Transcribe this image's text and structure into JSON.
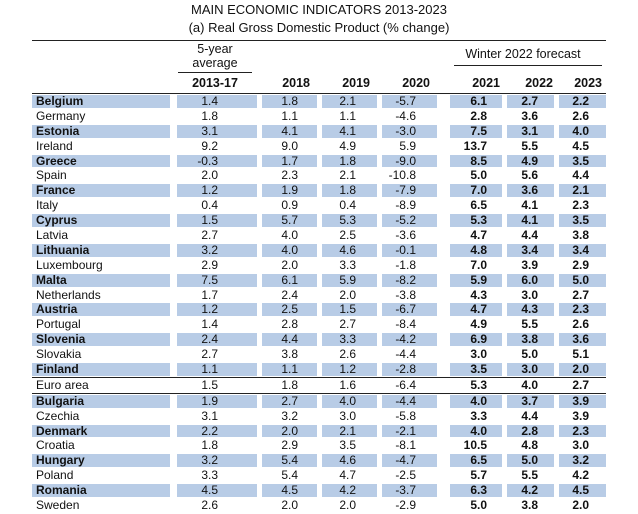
{
  "title": "MAIN ECONOMIC INDICATORS 2013-2023",
  "subtitle": "(a) Real Gross Domestic Product (% change)",
  "headers": {
    "avg_line1": "5-year",
    "avg_line2": "average",
    "forecast_group": "Winter 2022 forecast",
    "columns": [
      "2013-17",
      "2018",
      "2019",
      "2020",
      "2021",
      "2022",
      "2023"
    ]
  },
  "highlight_color": "#b8cce6",
  "rows": [
    {
      "country": "Belgium",
      "highlight": true,
      "values": [
        "1.4",
        "1.8",
        "2.1",
        "-5.7",
        "6.1",
        "2.7",
        "2.2"
      ]
    },
    {
      "country": "Germany",
      "highlight": false,
      "values": [
        "1.8",
        "1.1",
        "1.1",
        "-4.6",
        "2.8",
        "3.6",
        "2.6"
      ]
    },
    {
      "country": "Estonia",
      "highlight": true,
      "values": [
        "3.1",
        "4.1",
        "4.1",
        "-3.0",
        "7.5",
        "3.1",
        "4.0"
      ]
    },
    {
      "country": "Ireland",
      "highlight": false,
      "values": [
        "9.2",
        "9.0",
        "4.9",
        "5.9",
        "13.7",
        "5.5",
        "4.5"
      ]
    },
    {
      "country": "Greece",
      "highlight": true,
      "values": [
        "-0.3",
        "1.7",
        "1.8",
        "-9.0",
        "8.5",
        "4.9",
        "3.5"
      ]
    },
    {
      "country": "Spain",
      "highlight": false,
      "values": [
        "2.0",
        "2.3",
        "2.1",
        "-10.8",
        "5.0",
        "5.6",
        "4.4"
      ]
    },
    {
      "country": "France",
      "highlight": true,
      "values": [
        "1.2",
        "1.9",
        "1.8",
        "-7.9",
        "7.0",
        "3.6",
        "2.1"
      ]
    },
    {
      "country": "Italy",
      "highlight": false,
      "values": [
        "0.4",
        "0.9",
        "0.4",
        "-8.9",
        "6.5",
        "4.1",
        "2.3"
      ]
    },
    {
      "country": "Cyprus",
      "highlight": true,
      "values": [
        "1.5",
        "5.7",
        "5.3",
        "-5.2",
        "5.3",
        "4.1",
        "3.5"
      ]
    },
    {
      "country": "Latvia",
      "highlight": false,
      "values": [
        "2.7",
        "4.0",
        "2.5",
        "-3.6",
        "4.7",
        "4.4",
        "3.8"
      ]
    },
    {
      "country": "Lithuania",
      "highlight": true,
      "values": [
        "3.2",
        "4.0",
        "4.6",
        "-0.1",
        "4.8",
        "3.4",
        "3.4"
      ]
    },
    {
      "country": "Luxembourg",
      "highlight": false,
      "values": [
        "2.9",
        "2.0",
        "3.3",
        "-1.8",
        "7.0",
        "3.9",
        "2.9"
      ]
    },
    {
      "country": "Malta",
      "highlight": true,
      "values": [
        "7.5",
        "6.1",
        "5.9",
        "-8.2",
        "5.9",
        "6.0",
        "5.0"
      ]
    },
    {
      "country": "Netherlands",
      "highlight": false,
      "values": [
        "1.7",
        "2.4",
        "2.0",
        "-3.8",
        "4.3",
        "3.0",
        "2.7"
      ]
    },
    {
      "country": "Austria",
      "highlight": true,
      "values": [
        "1.2",
        "2.5",
        "1.5",
        "-6.7",
        "4.7",
        "4.3",
        "2.3"
      ]
    },
    {
      "country": "Portugal",
      "highlight": false,
      "values": [
        "1.4",
        "2.8",
        "2.7",
        "-8.4",
        "4.9",
        "5.5",
        "2.6"
      ]
    },
    {
      "country": "Slovenia",
      "highlight": true,
      "values": [
        "2.4",
        "4.4",
        "3.3",
        "-4.2",
        "6.9",
        "3.8",
        "3.6"
      ]
    },
    {
      "country": "Slovakia",
      "highlight": false,
      "values": [
        "2.7",
        "3.8",
        "2.6",
        "-4.4",
        "3.0",
        "5.0",
        "5.1"
      ]
    },
    {
      "country": "Finland",
      "highlight": true,
      "values": [
        "1.1",
        "1.1",
        "1.2",
        "-2.8",
        "3.5",
        "3.0",
        "2.0"
      ]
    },
    {
      "country": "Euro area",
      "highlight": false,
      "values": [
        "1.5",
        "1.8",
        "1.6",
        "-6.4",
        "5.3",
        "4.0",
        "2.7"
      ]
    },
    {
      "country": "Bulgaria",
      "highlight": true,
      "values": [
        "1.9",
        "2.7",
        "4.0",
        "-4.4",
        "4.0",
        "3.7",
        "3.9"
      ]
    },
    {
      "country": "Czechia",
      "highlight": false,
      "values": [
        "3.1",
        "3.2",
        "3.0",
        "-5.8",
        "3.3",
        "4.4",
        "3.9"
      ]
    },
    {
      "country": "Denmark",
      "highlight": true,
      "values": [
        "2.2",
        "2.0",
        "2.1",
        "-2.1",
        "4.0",
        "2.8",
        "2.3"
      ]
    },
    {
      "country": "Croatia",
      "highlight": false,
      "values": [
        "1.8",
        "2.9",
        "3.5",
        "-8.1",
        "10.5",
        "4.8",
        "3.0"
      ]
    },
    {
      "country": "Hungary",
      "highlight": true,
      "values": [
        "3.2",
        "5.4",
        "4.6",
        "-4.7",
        "6.5",
        "5.0",
        "3.2"
      ]
    },
    {
      "country": "Poland",
      "highlight": false,
      "values": [
        "3.3",
        "5.4",
        "4.7",
        "-2.5",
        "5.7",
        "5.5",
        "4.2"
      ]
    },
    {
      "country": "Romania",
      "highlight": true,
      "values": [
        "4.5",
        "4.5",
        "4.2",
        "-3.7",
        "6.3",
        "4.2",
        "4.5"
      ]
    },
    {
      "country": "Sweden",
      "highlight": false,
      "values": [
        "2.6",
        "2.0",
        "2.0",
        "-2.9",
        "5.0",
        "3.8",
        "2.0"
      ]
    }
  ]
}
